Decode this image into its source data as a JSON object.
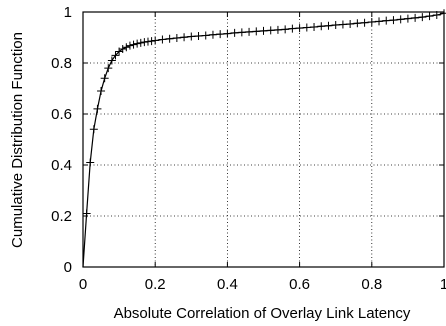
{
  "chart_data": {
    "type": "line",
    "title": "",
    "xlabel": "Absolute Correlation of Overlay Link Latency",
    "ylabel": "Cumulative Distribution Function",
    "xlim": [
      0,
      1
    ],
    "ylim": [
      0,
      1
    ],
    "x_ticks": [
      "0",
      "0.2",
      "0.4",
      "0.6",
      "0.8",
      "1"
    ],
    "y_ticks": [
      "0",
      "0.2",
      "0.4",
      "0.6",
      "0.8",
      "1"
    ],
    "grid": true,
    "marker": "plus",
    "series": [
      {
        "x": [
          0.0,
          0.01,
          0.02,
          0.03,
          0.04,
          0.05,
          0.06,
          0.07,
          0.08,
          0.09,
          0.1,
          0.11,
          0.12,
          0.13,
          0.14,
          0.15,
          0.16,
          0.17,
          0.18,
          0.19,
          0.2,
          0.22,
          0.24,
          0.26,
          0.28,
          0.3,
          0.32,
          0.34,
          0.36,
          0.38,
          0.4,
          0.42,
          0.44,
          0.46,
          0.48,
          0.5,
          0.52,
          0.54,
          0.56,
          0.58,
          0.6,
          0.62,
          0.64,
          0.66,
          0.68,
          0.7,
          0.72,
          0.74,
          0.76,
          0.78,
          0.8,
          0.82,
          0.84,
          0.86,
          0.88,
          0.9,
          0.92,
          0.94,
          0.96,
          0.98,
          1.0
        ],
        "y": [
          0.0,
          0.21,
          0.41,
          0.54,
          0.62,
          0.69,
          0.74,
          0.78,
          0.81,
          0.83,
          0.845,
          0.855,
          0.862,
          0.868,
          0.872,
          0.876,
          0.879,
          0.882,
          0.884,
          0.886,
          0.888,
          0.892,
          0.895,
          0.898,
          0.901,
          0.904,
          0.906,
          0.908,
          0.911,
          0.913,
          0.915,
          0.918,
          0.92,
          0.922,
          0.924,
          0.926,
          0.928,
          0.93,
          0.932,
          0.935,
          0.937,
          0.939,
          0.941,
          0.944,
          0.946,
          0.949,
          0.951,
          0.953,
          0.956,
          0.958,
          0.961,
          0.963,
          0.966,
          0.968,
          0.971,
          0.974,
          0.977,
          0.98,
          0.984,
          0.988,
          0.995
        ]
      }
    ]
  }
}
